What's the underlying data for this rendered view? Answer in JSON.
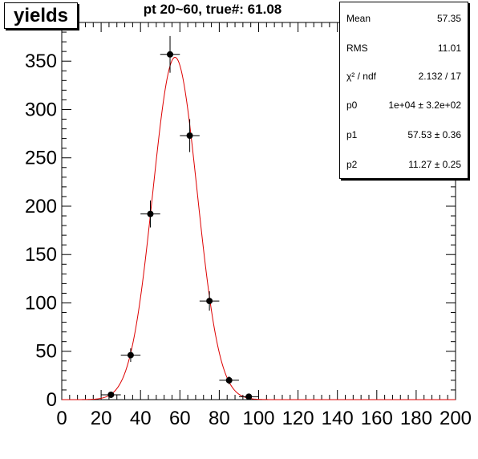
{
  "canvas_title": "yields",
  "histogram_title": "pt 20~60, true#: 61.08",
  "stats": [
    {
      "label": "Mean",
      "value": "57.35"
    },
    {
      "label": "RMS",
      "value": "11.01"
    },
    {
      "label": "χ² / ndf",
      "value": "2.132 / 17"
    },
    {
      "label": "p0",
      "value": "1e+04 ± 3.2e+02"
    },
    {
      "label": "p1",
      "value": "57.53 ± 0.36"
    },
    {
      "label": "p2",
      "value": "11.27 ± 0.25"
    }
  ],
  "colors": {
    "fit": "#dd0000",
    "points": "#000000",
    "axis": "#000000"
  },
  "chart_data": {
    "type": "scatter",
    "title": "pt 20~60, true#: 61.08",
    "xlabel": "",
    "ylabel": "",
    "xlim": [
      0,
      200
    ],
    "ylim": [
      0,
      390
    ],
    "x_ticks": [
      0,
      20,
      40,
      60,
      80,
      100,
      120,
      140,
      160,
      180,
      200
    ],
    "y_ticks": [
      0,
      50,
      100,
      150,
      200,
      250,
      300,
      350
    ],
    "bin_width": 10,
    "points": [
      {
        "x": 25,
        "y": 5,
        "err": 2
      },
      {
        "x": 35,
        "y": 46,
        "err": 7
      },
      {
        "x": 45,
        "y": 192,
        "err": 14
      },
      {
        "x": 55,
        "y": 357,
        "err": 19
      },
      {
        "x": 65,
        "y": 273,
        "err": 17
      },
      {
        "x": 75,
        "y": 102,
        "err": 10
      },
      {
        "x": 85,
        "y": 20,
        "err": 4
      },
      {
        "x": 95,
        "y": 3,
        "err": 2
      }
    ],
    "fit": {
      "function": "gaus",
      "constant": 10000,
      "mean": 57.53,
      "sigma": 11.27,
      "norm_scale": 0.0354
    },
    "grid": false,
    "legend": "top-right"
  }
}
